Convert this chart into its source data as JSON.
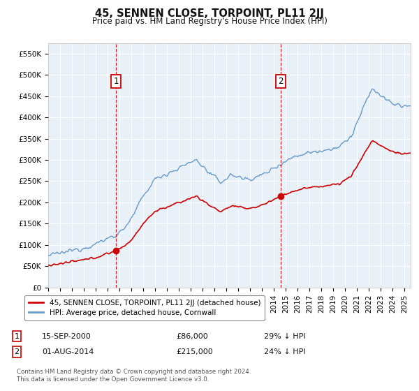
{
  "title": "45, SENNEN CLOSE, TORPOINT, PL11 2JJ",
  "subtitle": "Price paid vs. HM Land Registry's House Price Index (HPI)",
  "ylabel_ticks": [
    "£0",
    "£50K",
    "£100K",
    "£150K",
    "£200K",
    "£250K",
    "£300K",
    "£350K",
    "£400K",
    "£450K",
    "£500K",
    "£550K"
  ],
  "ytick_values": [
    0,
    50000,
    100000,
    150000,
    200000,
    250000,
    300000,
    350000,
    400000,
    450000,
    500000,
    550000
  ],
  "ylim": [
    0,
    575000
  ],
  "xlim_start": 1995.0,
  "xlim_end": 2025.5,
  "point1_x": 2000.708,
  "point1_y": 86000,
  "point1_label": "1",
  "point1_date": "15-SEP-2000",
  "point1_price": "£86,000",
  "point1_hpi": "29% ↓ HPI",
  "point2_x": 2014.583,
  "point2_y": 215000,
  "point2_label": "2",
  "point2_date": "01-AUG-2014",
  "point2_price": "£215,000",
  "point2_hpi": "24% ↓ HPI",
  "legend_line1": "45, SENNEN CLOSE, TORPOINT, PL11 2JJ (detached house)",
  "legend_line2": "HPI: Average price, detached house, Cornwall",
  "footer": "Contains HM Land Registry data © Crown copyright and database right 2024.\nThis data is licensed under the Open Government Licence v3.0.",
  "line_color_red": "#cc0000",
  "line_color_blue": "#6699cc",
  "background_color": "#e8f0f8",
  "grid_color": "#ffffff",
  "annotation_box_color": "#cc0000"
}
